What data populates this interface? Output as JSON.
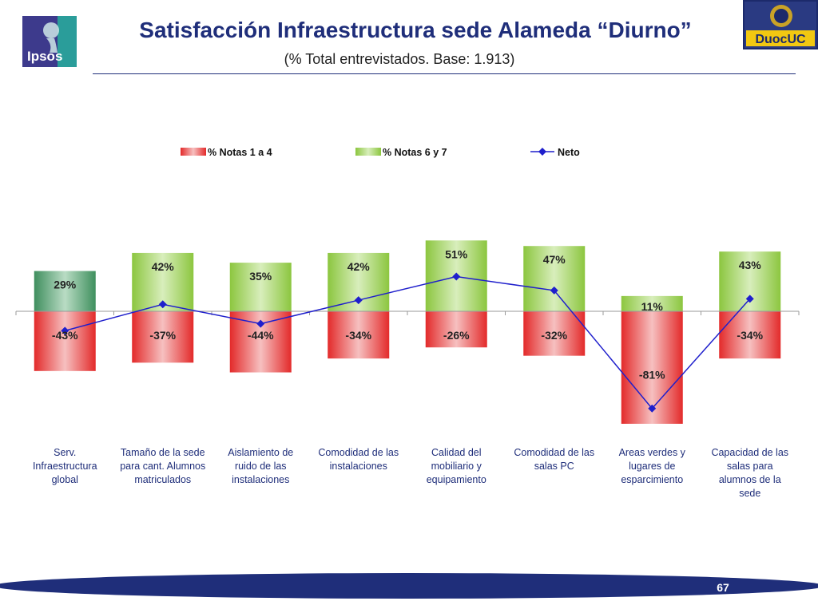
{
  "header": {
    "title": "Satisfacción Infraestructura sede Alameda “Diurno”",
    "subtitle": "(% Total entrevistados. Base: 1.913)",
    "left_logo_text": "Ipsos",
    "right_logo_text": "DuocUC"
  },
  "footer": {
    "page_number": "67"
  },
  "colors": {
    "title": "#1f2e7a",
    "negative_bar": "#e32a2a",
    "positive_bar": "#8cc63f",
    "first_positive_bar": "#3f8f5e",
    "net_line": "#1f1fcc",
    "footer_band": "#1f2e7a"
  },
  "chart_data": {
    "type": "bar",
    "categories": [
      [
        "Serv.",
        "Infraestructura",
        "global"
      ],
      [
        "Tamaño de la sede",
        "para cant. Alumnos",
        "matriculados"
      ],
      [
        "Aislamiento de",
        "ruido de las",
        "instalaciones"
      ],
      [
        "Comodidad de las",
        "instalaciones"
      ],
      [
        "Calidad del",
        "mobiliario y",
        "equipamiento"
      ],
      [
        "Comodidad de las",
        "salas PC"
      ],
      [
        "Areas verdes y",
        "lugares de",
        "esparcimiento"
      ],
      [
        "Capacidad de las",
        "salas para",
        "alumnos de la",
        "sede"
      ]
    ],
    "series": [
      {
        "name": "% Notas 1 a 4",
        "kind": "bar",
        "values": [
          -43,
          -37,
          -44,
          -34,
          -26,
          -32,
          -81,
          -34
        ],
        "labels": [
          "-43%",
          "-37%",
          "-44%",
          "-34%",
          "-26%",
          "-32%",
          "-81%",
          "-34%"
        ]
      },
      {
        "name": "% Notas 6 y 7",
        "kind": "bar",
        "values": [
          29,
          42,
          35,
          42,
          51,
          47,
          11,
          43
        ],
        "labels": [
          "29%",
          "42%",
          "35%",
          "42%",
          "51%",
          "47%",
          "11%",
          "43%"
        ]
      },
      {
        "name": "Neto",
        "kind": "line",
        "values": [
          -14,
          5,
          -9,
          8,
          25,
          15,
          -70,
          9
        ]
      }
    ],
    "legend_position": "top",
    "ylim": [
      -90,
      60
    ],
    "grid": false
  }
}
